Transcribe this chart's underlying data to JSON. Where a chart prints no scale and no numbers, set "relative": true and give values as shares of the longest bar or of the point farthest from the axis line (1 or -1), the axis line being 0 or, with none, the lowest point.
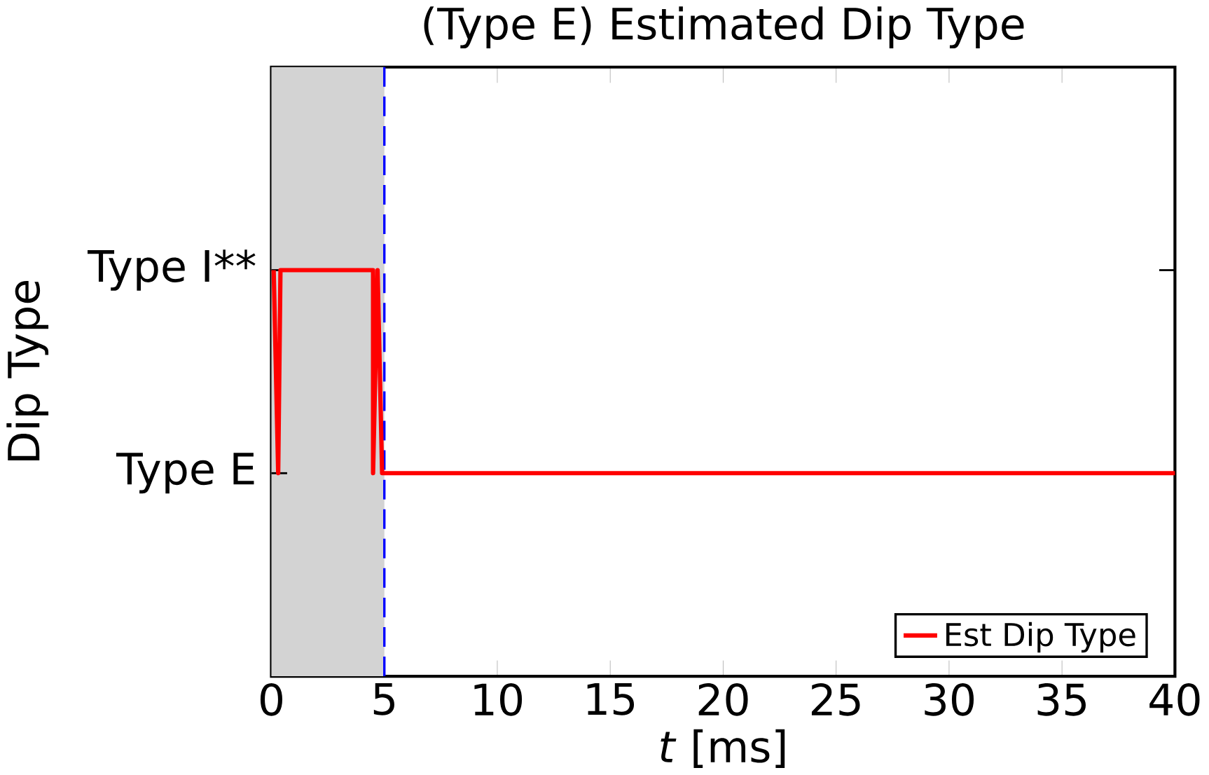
{
  "chart_data": {
    "type": "line",
    "title": "(Type E) Estimated Dip Type",
    "xlabel": "*t* [ms]",
    "ylabel": "Dip Type",
    "relative": true,
    "series": [
      {
        "name": "Est Dip Type",
        "color": "#ff0000",
        "x": [
          0.1,
          0.3,
          0.4,
          4.5,
          4.5,
          4.7,
          4.9,
          40
        ],
        "values": [
          1,
          0.5,
          1,
          1,
          0.5,
          1,
          0.5,
          0.5
        ]
      }
    ],
    "xlim": [
      0,
      40
    ],
    "xticks": [
      0,
      5,
      10,
      15,
      20,
      25,
      30,
      35,
      40
    ],
    "annotations": [
      "Type E",
      "Type I**"
    ],
    "bands": [
      {
        "axis": "x",
        "from": 0,
        "to": 5,
        "color": "#d3d3d3"
      }
    ],
    "ref_lines": [
      {
        "axis": "x",
        "value": 5,
        "color": "#0000ff",
        "line_style": "dashed"
      }
    ],
    "legend": "bottom right",
    "grid": false,
    "marker": "none",
    "line_style": "solid"
  }
}
